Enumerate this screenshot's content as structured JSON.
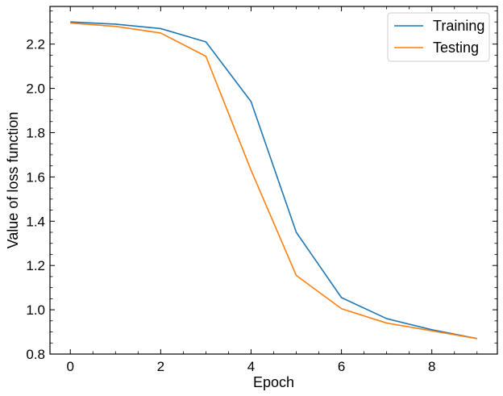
{
  "chart_data": {
    "type": "line",
    "title": "",
    "xlabel": "Epoch",
    "ylabel": "Value of loss function",
    "xlim": [
      -0.45,
      9.45
    ],
    "ylim": [
      0.8,
      2.37
    ],
    "x_ticks": [
      0,
      2,
      4,
      6,
      8
    ],
    "y_ticks": [
      0.8,
      1.0,
      1.2,
      1.4,
      1.6,
      1.8,
      2.0,
      2.2
    ],
    "x_minor_step": 0.5,
    "y_minor_step": 0.05,
    "grid": false,
    "legend_position": "top-right",
    "x": [
      0,
      1,
      2,
      3,
      4,
      5,
      6,
      7,
      8,
      9
    ],
    "series": [
      {
        "name": "Training",
        "color": "#1f77b4",
        "values": [
          2.3,
          2.29,
          2.27,
          2.21,
          1.94,
          1.35,
          1.055,
          0.96,
          0.91,
          0.87
        ]
      },
      {
        "name": "Testing",
        "color": "#ff7f0e",
        "values": [
          2.295,
          2.28,
          2.25,
          2.145,
          1.63,
          1.155,
          1.005,
          0.94,
          0.905,
          0.87
        ]
      }
    ]
  }
}
